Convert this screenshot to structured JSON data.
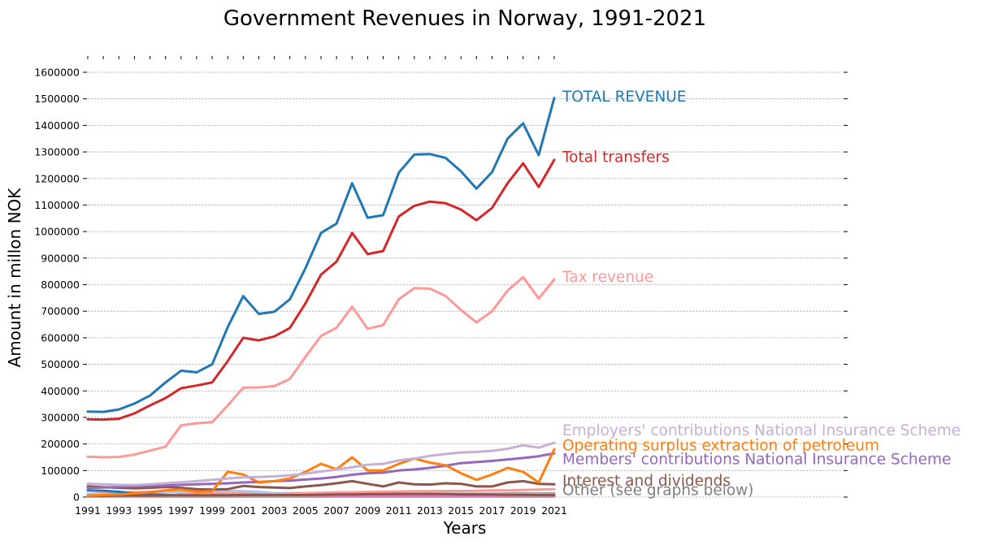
{
  "chart_data": {
    "type": "line",
    "title": "Government Revenues in Norway, 1991-2021",
    "xlabel": "Years",
    "ylabel": "Amount in millon NOK",
    "xlim": [
      1991,
      2021
    ],
    "ylim": [
      0,
      1600000
    ],
    "x": [
      1991,
      1992,
      1993,
      1994,
      1995,
      1996,
      1997,
      1998,
      1999,
      2000,
      2001,
      2002,
      2003,
      2004,
      2005,
      2006,
      2007,
      2008,
      2009,
      2010,
      2011,
      2012,
      2013,
      2014,
      2015,
      2016,
      2017,
      2018,
      2019,
      2020,
      2021
    ],
    "x_ticks": [
      "1991",
      "1993",
      "1995",
      "1997",
      "1999",
      "2001",
      "2003",
      "2005",
      "2007",
      "2009",
      "2011",
      "2013",
      "2015",
      "2017",
      "2019",
      "2021"
    ],
    "y_ticks": [
      "0",
      "100000",
      "200000",
      "300000",
      "400000",
      "500000",
      "600000",
      "700000",
      "800000",
      "900000",
      "1000000",
      "1100000",
      "1200000",
      "1300000",
      "1400000",
      "1500000",
      "1600000"
    ],
    "grid": "horizontal",
    "legend": "labels at line ends",
    "series": [
      {
        "name": "Other (see graphs below)",
        "color": "#7f7f7f",
        "values": [
          5000,
          5000,
          5000,
          6000,
          6000,
          6000,
          7000,
          7000,
          7000,
          8000,
          8000,
          8000,
          8000,
          9000,
          9000,
          9000,
          10000,
          10000,
          10000,
          11000,
          11000,
          11000,
          12000,
          12000,
          12000,
          12000,
          12000,
          13000,
          13000,
          13000,
          14000
        ]
      },
      {
        "name": "",
        "color": "#ff9896",
        "values": [
          12000,
          14000,
          16000,
          18000,
          20000,
          25000,
          15000,
          14000,
          14000,
          18000,
          16000,
          15000,
          14000,
          15000,
          15000,
          16000,
          18000,
          18000,
          19000,
          20000,
          21000,
          22000,
          22000,
          23000,
          23000,
          24000,
          25000,
          25000,
          27000,
          28000,
          30000
        ]
      },
      {
        "name": "",
        "color": "#aec7e8",
        "values": [
          10000,
          12000,
          13000,
          15000,
          16000,
          18000,
          20000,
          22000,
          25000,
          24000,
          22000,
          20000,
          15000,
          12000,
          10000,
          8000,
          8000,
          9000,
          10000,
          10000,
          9000,
          9000,
          9000,
          10000,
          10000,
          10000,
          11000,
          11000,
          11000,
          11000,
          12000
        ]
      },
      {
        "name": "",
        "color": "#1f77b4",
        "values": [
          25000,
          24000,
          20000,
          15000,
          10000,
          8000,
          6000,
          5000,
          5000,
          6000,
          6000,
          5000,
          4000,
          4000,
          4000,
          4000,
          5000,
          6000,
          7000,
          8000,
          9000,
          5000,
          5000,
          5000,
          5000,
          5000,
          5000,
          5000,
          5000,
          5000,
          5000
        ]
      },
      {
        "name": "",
        "color": "#d62728",
        "values": [
          3000,
          3000,
          3000,
          3000,
          3000,
          3000,
          3000,
          3000,
          3000,
          3000,
          3000,
          3000,
          3000,
          3000,
          3000,
          3000,
          3000,
          3000,
          3000,
          3000,
          3000,
          3000,
          3000,
          3000,
          3000,
          3000,
          3000,
          3000,
          3000,
          3000,
          3000
        ]
      },
      {
        "name": "",
        "color": "#2ca02c",
        "values": [
          2000,
          2000,
          2000,
          2000,
          2000,
          2000,
          2000,
          2000,
          2000,
          2000,
          2000,
          2000,
          2000,
          2000,
          2000,
          2000,
          2000,
          2000,
          2000,
          2000,
          2000,
          2000,
          2000,
          2000,
          2000,
          2000,
          2000,
          2000,
          2000,
          2000,
          2000
        ]
      },
      {
        "name": "",
        "color": "#e377c2",
        "values": [
          3000,
          3000,
          3000,
          3000,
          3000,
          3000,
          3000,
          3000,
          3000,
          3000,
          3000,
          3000,
          3000,
          3000,
          3000,
          3000,
          3000,
          3000,
          3000,
          3000,
          3000,
          3000,
          3000,
          3000,
          3000,
          3000,
          3000,
          3000,
          3000,
          3000,
          3000
        ]
      },
      {
        "name": "",
        "color": "#8c564b",
        "values": [
          5000,
          5000,
          6000,
          6000,
          6000,
          7000,
          7000,
          7000,
          7000,
          7000,
          8000,
          8000,
          8000,
          8000,
          8000,
          9000,
          10000,
          10000,
          11000,
          11000,
          12000,
          12000,
          12000,
          12000,
          10000,
          10000,
          10000,
          9000,
          9000,
          8000,
          8000
        ]
      },
      {
        "name": "Interest and dividends",
        "color": "#8c564b",
        "values": [
          40000,
          37000,
          35000,
          33000,
          35000,
          38000,
          35000,
          30000,
          28000,
          30000,
          42000,
          38000,
          36000,
          34000,
          40000,
          45000,
          52000,
          60000,
          50000,
          40000,
          55000,
          48000,
          47000,
          52000,
          50000,
          40000,
          40000,
          55000,
          60000,
          50000,
          48000
        ]
      },
      {
        "name": "Members' contributions National Insurance Scheme",
        "color": "#9467bd",
        "values": [
          35000,
          36000,
          38000,
          40000,
          42000,
          44000,
          46000,
          48000,
          50000,
          52000,
          55000,
          57000,
          60000,
          62000,
          66000,
          70000,
          76000,
          84000,
          90000,
          92000,
          100000,
          104000,
          110000,
          118000,
          128000,
          132000,
          136000,
          142000,
          147000,
          154000,
          165000
        ]
      },
      {
        "name": "Operating surplus extraction of petroleum",
        "color": "#ff7f0e",
        "values": [
          5000,
          8000,
          10000,
          14000,
          18000,
          25000,
          28000,
          20000,
          22000,
          95000,
          85000,
          55000,
          60000,
          70000,
          95000,
          125000,
          105000,
          150000,
          100000,
          100000,
          125000,
          145000,
          130000,
          120000,
          90000,
          65000,
          85000,
          110000,
          95000,
          55000,
          180000
        ]
      },
      {
        "name": "Employers' contributions National Insurance Scheme",
        "color": "#c5b0d5",
        "values": [
          50000,
          48000,
          46000,
          45000,
          48000,
          52000,
          56000,
          60000,
          65000,
          70000,
          74000,
          76000,
          78000,
          82000,
          88000,
          96000,
          104000,
          112000,
          122000,
          125000,
          138000,
          145000,
          155000,
          162000,
          168000,
          170000,
          174000,
          182000,
          195000,
          186000,
          205000
        ]
      },
      {
        "name": "Tax revenue",
        "color": "#ff9896",
        "values": [
          152000,
          150000,
          151000,
          160000,
          175000,
          190000,
          270000,
          278000,
          282000,
          345000,
          412000,
          413000,
          418000,
          445000,
          528000,
          607000,
          638000,
          717000,
          634000,
          648000,
          745000,
          787000,
          785000,
          758000,
          705000,
          658000,
          700000,
          778000,
          828000,
          748000,
          820000
        ]
      },
      {
        "name": "Total transfers",
        "color": "#d62728",
        "values": [
          293000,
          292000,
          295000,
          315000,
          345000,
          373000,
          410000,
          420000,
          432000,
          512000,
          600000,
          590000,
          605000,
          637000,
          730000,
          838000,
          887000,
          995000,
          915000,
          927000,
          1057000,
          1097000,
          1113000,
          1107000,
          1083000,
          1043000,
          1089000,
          1182000,
          1257000,
          1168000,
          1270000
        ]
      },
      {
        "name": "TOTAL REVENUE",
        "color": "#1f77b4",
        "values": [
          322000,
          321000,
          330000,
          352000,
          382000,
          432000,
          476000,
          470000,
          500000,
          640000,
          757000,
          690000,
          698000,
          745000,
          862000,
          995000,
          1030000,
          1182000,
          1052000,
          1062000,
          1222000,
          1290000,
          1292000,
          1278000,
          1227000,
          1162000,
          1224000,
          1350000,
          1408000,
          1288000,
          1503000
        ]
      }
    ],
    "end_labels": [
      {
        "text": "TOTAL REVENUE",
        "color": "#1f77b4",
        "y": 1510000
      },
      {
        "text": "Total transfers",
        "color": "#d62728",
        "y": 1282000
      },
      {
        "text": "Tax revenue",
        "color": "#ff9896",
        "y": 831000
      },
      {
        "text": "Employers' contributions National Insurance Scheme",
        "color": "#c5b0d5",
        "y": 252000
      },
      {
        "text": "Operating surplus extraction of petroleum",
        "color": "#ff7f0e",
        "y": 196000
      },
      {
        "text": "Members' contributions National Insurance Scheme",
        "color": "#9467bd",
        "y": 144000
      },
      {
        "text": "Interest and dividends",
        "color": "#8c564b",
        "y": 62000
      },
      {
        "text": "Other (see graphs below)",
        "color": "#7f7f7f",
        "y": 27000
      }
    ]
  }
}
